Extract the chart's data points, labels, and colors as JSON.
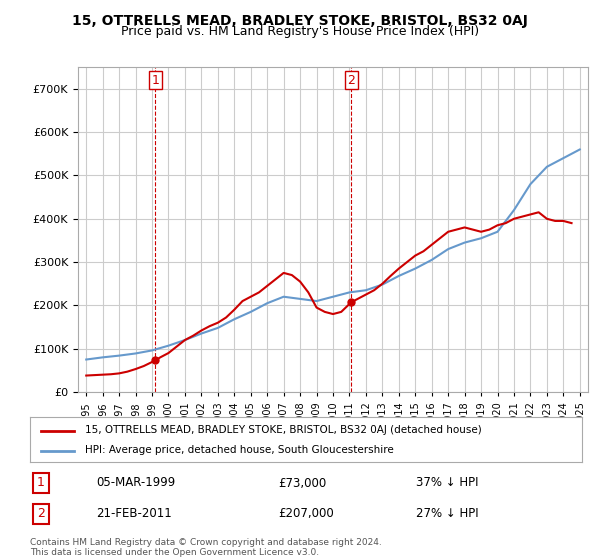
{
  "title": "15, OTTRELLS MEAD, BRADLEY STOKE, BRISTOL, BS32 0AJ",
  "subtitle": "Price paid vs. HM Land Registry's House Price Index (HPI)",
  "legend_label_red": "15, OTTRELLS MEAD, BRADLEY STOKE, BRISTOL, BS32 0AJ (detached house)",
  "legend_label_blue": "HPI: Average price, detached house, South Gloucestershire",
  "transaction1_label": "1",
  "transaction1_date": "05-MAR-1999",
  "transaction1_price": "£73,000",
  "transaction1_hpi": "37% ↓ HPI",
  "transaction2_label": "2",
  "transaction2_date": "21-FEB-2011",
  "transaction2_price": "£207,000",
  "transaction2_hpi": "27% ↓ HPI",
  "footer": "Contains HM Land Registry data © Crown copyright and database right 2024.\nThis data is licensed under the Open Government Licence v3.0.",
  "red_color": "#cc0000",
  "blue_color": "#6699cc",
  "vline_color": "#cc0000",
  "grid_color": "#cccccc",
  "background_color": "#ffffff",
  "ylim": [
    0,
    750000
  ],
  "yticks": [
    0,
    100000,
    200000,
    300000,
    400000,
    500000,
    600000,
    700000
  ],
  "hpi_years": [
    1995,
    1996,
    1997,
    1998,
    1999,
    2000,
    2001,
    2002,
    2003,
    2004,
    2005,
    2006,
    2007,
    2008,
    2009,
    2010,
    2011,
    2012,
    2013,
    2014,
    2015,
    2016,
    2017,
    2018,
    2019,
    2020,
    2021,
    2022,
    2023,
    2024,
    2025
  ],
  "hpi_values": [
    75000,
    80000,
    84000,
    89000,
    96000,
    107000,
    120000,
    135000,
    148000,
    168000,
    185000,
    205000,
    220000,
    215000,
    210000,
    220000,
    230000,
    235000,
    248000,
    268000,
    285000,
    305000,
    330000,
    345000,
    355000,
    370000,
    420000,
    480000,
    520000,
    540000,
    560000
  ],
  "red_x": [
    1995.0,
    1995.5,
    1996.0,
    1996.5,
    1997.0,
    1997.5,
    1998.0,
    1998.5,
    1999.2,
    1999.5,
    2000.0,
    2000.5,
    2001.0,
    2001.5,
    2002.0,
    2002.5,
    2003.0,
    2003.5,
    2004.0,
    2004.5,
    2005.0,
    2005.5,
    2006.0,
    2006.5,
    2007.0,
    2007.5,
    2008.0,
    2008.5,
    2009.0,
    2009.5,
    2010.0,
    2010.5,
    2011.1,
    2011.5,
    2012.0,
    2012.5,
    2013.0,
    2013.5,
    2014.0,
    2014.5,
    2015.0,
    2015.5,
    2016.0,
    2016.5,
    2017.0,
    2017.5,
    2018.0,
    2018.5,
    2019.0,
    2019.5,
    2020.0,
    2020.5,
    2021.0,
    2021.5,
    2022.0,
    2022.5,
    2023.0,
    2023.5,
    2024.0,
    2024.5
  ],
  "red_values": [
    38000,
    39000,
    40000,
    41000,
    43000,
    47000,
    53000,
    60000,
    73000,
    80000,
    90000,
    105000,
    120000,
    130000,
    142000,
    152000,
    160000,
    172000,
    190000,
    210000,
    220000,
    230000,
    245000,
    260000,
    275000,
    270000,
    255000,
    230000,
    195000,
    185000,
    180000,
    185000,
    207000,
    215000,
    225000,
    235000,
    250000,
    268000,
    285000,
    300000,
    315000,
    325000,
    340000,
    355000,
    370000,
    375000,
    380000,
    375000,
    370000,
    375000,
    385000,
    390000,
    400000,
    405000,
    410000,
    415000,
    400000,
    395000,
    395000,
    390000
  ],
  "vline1_x": 1999.2,
  "vline2_x": 2011.1,
  "marker1_y": 73000,
  "marker2_y": 207000,
  "xtick_years": [
    1995,
    1996,
    1997,
    1998,
    1999,
    2000,
    2001,
    2002,
    2003,
    2004,
    2005,
    2006,
    2007,
    2008,
    2009,
    2010,
    2011,
    2012,
    2013,
    2014,
    2015,
    2016,
    2017,
    2018,
    2019,
    2020,
    2021,
    2022,
    2023,
    2024,
    2025
  ]
}
